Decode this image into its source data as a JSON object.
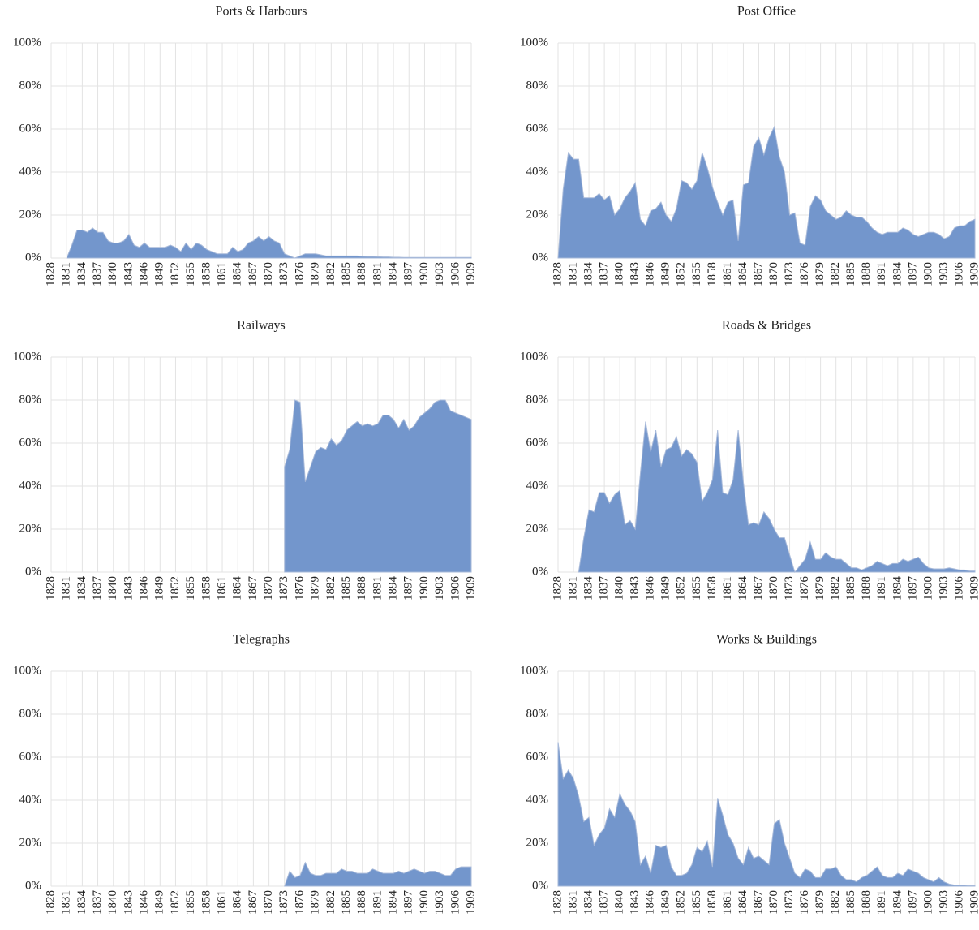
{
  "chart_data": [
    {
      "type": "area",
      "title": "Ports & Harbours",
      "color": "#7396cc",
      "grid": true,
      "x": [
        1831,
        1832,
        1833,
        1834,
        1835,
        1836,
        1837,
        1838,
        1839,
        1840,
        1841,
        1842,
        1843,
        1844,
        1845,
        1846,
        1847,
        1848,
        1849,
        1850,
        1851,
        1852,
        1853,
        1854,
        1855,
        1856,
        1857,
        1858,
        1859,
        1860,
        1861,
        1862,
        1863,
        1864,
        1865,
        1866,
        1867,
        1868,
        1869,
        1870,
        1871,
        1872,
        1873,
        1874,
        1875,
        1876,
        1877,
        1878,
        1879,
        1880,
        1881,
        1882,
        1883,
        1884,
        1885,
        1886,
        1887,
        1888,
        1889,
        1890,
        1891,
        1892,
        1893,
        1894,
        1895,
        1896,
        1897,
        1898,
        1899,
        1900,
        1901,
        1902,
        1903,
        1904,
        1905,
        1906,
        1907,
        1908,
        1909
      ],
      "values": [
        0,
        6,
        13,
        13,
        12,
        14,
        12,
        12,
        8,
        7,
        7,
        8,
        11,
        6,
        5,
        7,
        5,
        5,
        5,
        5,
        6,
        5,
        3,
        7,
        4,
        7,
        6,
        4,
        3,
        2,
        2,
        2,
        5,
        3,
        4,
        7,
        8,
        10,
        8,
        10,
        8,
        7,
        2,
        1,
        0,
        1,
        2,
        2,
        2,
        1.5,
        1,
        1,
        1,
        1,
        1,
        1,
        1,
        0.8,
        0.7,
        0.7,
        0.6,
        0.5,
        0.5,
        0.4,
        0.4,
        0.3,
        0.3,
        0.3,
        0.3,
        0.3,
        0.3,
        0.3,
        0.3,
        0.3,
        0.3,
        0.3,
        0.3,
        0.3,
        0.3
      ],
      "xlim": [
        1828,
        1909
      ],
      "xticks": [
        1828,
        1831,
        1834,
        1837,
        1840,
        1843,
        1846,
        1849,
        1852,
        1855,
        1858,
        1861,
        1864,
        1867,
        1870,
        1873,
        1876,
        1879,
        1882,
        1885,
        1888,
        1891,
        1894,
        1897,
        1900,
        1903,
        1906,
        1909
      ],
      "ylim": [
        0,
        100
      ],
      "yticks": [
        {
          "value": 0,
          "label": "0%"
        },
        {
          "value": 20,
          "label": "20%"
        },
        {
          "value": 40,
          "label": "40%"
        },
        {
          "value": 60,
          "label": "60%"
        },
        {
          "value": 80,
          "label": "80%"
        },
        {
          "value": 100,
          "label": "100%"
        }
      ]
    },
    {
      "type": "area",
      "title": "Post Office",
      "color": "#7396cc",
      "grid": true,
      "x": [
        1828,
        1829,
        1830,
        1831,
        1832,
        1833,
        1834,
        1835,
        1836,
        1837,
        1838,
        1839,
        1840,
        1841,
        1842,
        1843,
        1844,
        1845,
        1846,
        1847,
        1848,
        1849,
        1850,
        1851,
        1852,
        1853,
        1854,
        1855,
        1856,
        1857,
        1858,
        1859,
        1860,
        1861,
        1862,
        1863,
        1864,
        1865,
        1866,
        1867,
        1868,
        1869,
        1870,
        1871,
        1872,
        1873,
        1874,
        1875,
        1876,
        1877,
        1878,
        1879,
        1880,
        1881,
        1882,
        1883,
        1884,
        1885,
        1886,
        1887,
        1888,
        1889,
        1890,
        1891,
        1892,
        1893,
        1894,
        1895,
        1896,
        1897,
        1898,
        1899,
        1900,
        1901,
        1902,
        1903,
        1904,
        1905,
        1906,
        1907,
        1908,
        1909
      ],
      "values": [
        0,
        32,
        49,
        46,
        46,
        28,
        28,
        28,
        30,
        27,
        29,
        20,
        23,
        28,
        31,
        35,
        18,
        15,
        22,
        23,
        26,
        20,
        17,
        23,
        36,
        35,
        32,
        36,
        49,
        42,
        33,
        26,
        20,
        26,
        27,
        8,
        34,
        35,
        52,
        56,
        48,
        56,
        61,
        47,
        40,
        20,
        21,
        7,
        6,
        24,
        29,
        27,
        22,
        20,
        18,
        19,
        22,
        20,
        19,
        19,
        17,
        14,
        12,
        11,
        12,
        12,
        12,
        14,
        13,
        11,
        10,
        11,
        12,
        12,
        11,
        9,
        10,
        14,
        15,
        15,
        17,
        18
      ],
      "xlim": [
        1828,
        1909
      ],
      "xticks": [
        1828,
        1831,
        1834,
        1837,
        1840,
        1843,
        1846,
        1849,
        1852,
        1855,
        1858,
        1861,
        1864,
        1867,
        1870,
        1873,
        1876,
        1879,
        1882,
        1885,
        1888,
        1891,
        1894,
        1897,
        1900,
        1903,
        1906,
        1909
      ],
      "ylim": [
        0,
        100
      ],
      "yticks": [
        {
          "value": 0,
          "label": "0%"
        },
        {
          "value": 20,
          "label": "20%"
        },
        {
          "value": 40,
          "label": "40%"
        },
        {
          "value": 60,
          "label": "60%"
        },
        {
          "value": 80,
          "label": "80%"
        },
        {
          "value": 100,
          "label": "100%"
        }
      ]
    },
    {
      "type": "area",
      "title": "Railways",
      "color": "#7396cc",
      "grid": true,
      "x": [
        1873,
        1874,
        1875,
        1876,
        1877,
        1878,
        1879,
        1880,
        1881,
        1882,
        1883,
        1884,
        1885,
        1886,
        1887,
        1888,
        1889,
        1890,
        1891,
        1892,
        1893,
        1894,
        1895,
        1896,
        1897,
        1898,
        1899,
        1900,
        1901,
        1902,
        1903,
        1904,
        1905,
        1906,
        1907,
        1908,
        1909
      ],
      "values": [
        49,
        57,
        80,
        79,
        42,
        49,
        56,
        58,
        57,
        62,
        59,
        61,
        66,
        68,
        70,
        68,
        69,
        68,
        69,
        73,
        73,
        71,
        67,
        71,
        66,
        68,
        72,
        74,
        76,
        79,
        80,
        80,
        75,
        74,
        73,
        72,
        71
      ],
      "xlim": [
        1828,
        1909
      ],
      "xticks": [
        1828,
        1831,
        1834,
        1837,
        1840,
        1843,
        1846,
        1849,
        1852,
        1855,
        1858,
        1861,
        1864,
        1867,
        1870,
        1873,
        1876,
        1879,
        1882,
        1885,
        1888,
        1891,
        1894,
        1897,
        1900,
        1903,
        1906,
        1909
      ],
      "ylim": [
        0,
        100
      ],
      "yticks": [
        {
          "value": 0,
          "label": "0%"
        },
        {
          "value": 20,
          "label": "20%"
        },
        {
          "value": 40,
          "label": "40%"
        },
        {
          "value": 60,
          "label": "60%"
        },
        {
          "value": 80,
          "label": "80%"
        },
        {
          "value": 100,
          "label": "100%"
        }
      ]
    },
    {
      "type": "area",
      "title": "Roads & Bridges",
      "color": "#7396cc",
      "grid": true,
      "x": [
        1832,
        1833,
        1834,
        1835,
        1836,
        1837,
        1838,
        1839,
        1840,
        1841,
        1842,
        1843,
        1844,
        1845,
        1846,
        1847,
        1848,
        1849,
        1850,
        1851,
        1852,
        1853,
        1854,
        1855,
        1856,
        1857,
        1858,
        1859,
        1860,
        1861,
        1862,
        1863,
        1864,
        1865,
        1866,
        1867,
        1868,
        1869,
        1870,
        1871,
        1872,
        1873,
        1874,
        1875,
        1876,
        1877,
        1878,
        1879,
        1880,
        1881,
        1882,
        1883,
        1884,
        1885,
        1886,
        1887,
        1888,
        1889,
        1890,
        1891,
        1892,
        1893,
        1894,
        1895,
        1896,
        1897,
        1898,
        1899,
        1900,
        1901,
        1902,
        1903,
        1904,
        1905,
        1906,
        1907,
        1908,
        1909
      ],
      "values": [
        0,
        16,
        29,
        28,
        37,
        37,
        32,
        36,
        38,
        22,
        24,
        20,
        46,
        70,
        56,
        66,
        49,
        57,
        58,
        63,
        54,
        57,
        55,
        51,
        33,
        37,
        43,
        66,
        37,
        36,
        43,
        66,
        42,
        22,
        23,
        22,
        28,
        25,
        20,
        16,
        16,
        8,
        0,
        3,
        6,
        14,
        6,
        6,
        9,
        7,
        6,
        6,
        4,
        2,
        2,
        1,
        2,
        3,
        5,
        4,
        3,
        4,
        4,
        6,
        5,
        6,
        7,
        4,
        2,
        1.5,
        1.5,
        1.5,
        2,
        1.5,
        1,
        1,
        0.5,
        0.5
      ],
      "xlim": [
        1828,
        1909
      ],
      "xticks": [
        1828,
        1831,
        1834,
        1837,
        1840,
        1843,
        1846,
        1849,
        1852,
        1855,
        1858,
        1861,
        1864,
        1867,
        1870,
        1873,
        1876,
        1879,
        1882,
        1885,
        1888,
        1891,
        1894,
        1897,
        1900,
        1903,
        1906,
        1909
      ],
      "ylim": [
        0,
        100
      ],
      "yticks": [
        {
          "value": 0,
          "label": "0%"
        },
        {
          "value": 20,
          "label": "20%"
        },
        {
          "value": 40,
          "label": "40%"
        },
        {
          "value": 60,
          "label": "60%"
        },
        {
          "value": 80,
          "label": "80%"
        },
        {
          "value": 100,
          "label": "100%"
        }
      ]
    },
    {
      "type": "area",
      "title": "Telegraphs",
      "color": "#7396cc",
      "grid": true,
      "x": [
        1873,
        1874,
        1875,
        1876,
        1877,
        1878,
        1879,
        1880,
        1881,
        1882,
        1883,
        1884,
        1885,
        1886,
        1887,
        1888,
        1889,
        1890,
        1891,
        1892,
        1893,
        1894,
        1895,
        1896,
        1897,
        1898,
        1899,
        1900,
        1901,
        1902,
        1903,
        1904,
        1905,
        1906,
        1907,
        1908,
        1909
      ],
      "values": [
        0,
        7,
        4,
        5,
        11,
        6,
        5,
        5,
        6,
        6,
        6,
        8,
        7,
        7,
        6,
        6,
        6,
        8,
        7,
        6,
        6,
        6,
        7,
        6,
        7,
        8,
        7,
        6,
        7,
        7,
        6,
        5,
        5,
        8,
        9,
        9,
        9
      ],
      "xlim": [
        1828,
        1909
      ],
      "xticks": [
        1828,
        1831,
        1834,
        1837,
        1840,
        1843,
        1846,
        1849,
        1852,
        1855,
        1858,
        1861,
        1864,
        1867,
        1870,
        1873,
        1876,
        1879,
        1882,
        1885,
        1888,
        1891,
        1894,
        1897,
        1900,
        1903,
        1906,
        1909
      ],
      "ylim": [
        0,
        100
      ],
      "yticks": [
        {
          "value": 0,
          "label": "0%"
        },
        {
          "value": 20,
          "label": "20%"
        },
        {
          "value": 40,
          "label": "40%"
        },
        {
          "value": 60,
          "label": "60%"
        },
        {
          "value": 80,
          "label": "80%"
        },
        {
          "value": 100,
          "label": "100%"
        }
      ]
    },
    {
      "type": "area",
      "title": "Works & Buildings",
      "color": "#7396cc",
      "grid": true,
      "x": [
        1828,
        1829,
        1830,
        1831,
        1832,
        1833,
        1834,
        1835,
        1836,
        1837,
        1838,
        1839,
        1840,
        1841,
        1842,
        1843,
        1844,
        1845,
        1846,
        1847,
        1848,
        1849,
        1850,
        1851,
        1852,
        1853,
        1854,
        1855,
        1856,
        1857,
        1858,
        1859,
        1860,
        1861,
        1862,
        1863,
        1864,
        1865,
        1866,
        1867,
        1868,
        1869,
        1870,
        1871,
        1872,
        1873,
        1874,
        1875,
        1876,
        1877,
        1878,
        1879,
        1880,
        1881,
        1882,
        1883,
        1884,
        1885,
        1886,
        1887,
        1888,
        1889,
        1890,
        1891,
        1892,
        1893,
        1894,
        1895,
        1896,
        1897,
        1898,
        1899,
        1900,
        1901,
        1902,
        1903,
        1904,
        1905,
        1906,
        1907,
        1908,
        1909
      ],
      "values": [
        67,
        50,
        54,
        50,
        42,
        30,
        32,
        19,
        24,
        27,
        36,
        32,
        43,
        38,
        35,
        30,
        10,
        14,
        6,
        19,
        18,
        19,
        9,
        5,
        5,
        6,
        10,
        18,
        16,
        21,
        9,
        41,
        33,
        24,
        20,
        13,
        10,
        18,
        13,
        14,
        12,
        10,
        29,
        31,
        20,
        13,
        6,
        4,
        8,
        7,
        4,
        4,
        8,
        8,
        9,
        5,
        3,
        3,
        2,
        4,
        5,
        7,
        9,
        5,
        4,
        4,
        6,
        5,
        8,
        7,
        6,
        4,
        3,
        2,
        4,
        2,
        1,
        0.5,
        0.5,
        0.5,
        0.3,
        0.3
      ],
      "xlim": [
        1828,
        1909
      ],
      "xticks": [
        1828,
        1831,
        1834,
        1837,
        1840,
        1843,
        1846,
        1849,
        1852,
        1855,
        1858,
        1861,
        1864,
        1867,
        1870,
        1873,
        1876,
        1879,
        1882,
        1885,
        1888,
        1891,
        1894,
        1897,
        1900,
        1903,
        1906,
        1909
      ],
      "ylim": [
        0,
        100
      ],
      "yticks": [
        {
          "value": 0,
          "label": "0%"
        },
        {
          "value": 20,
          "label": "20%"
        },
        {
          "value": 40,
          "label": "40%"
        },
        {
          "value": 60,
          "label": "60%"
        },
        {
          "value": 80,
          "label": "80%"
        },
        {
          "value": 100,
          "label": "100%"
        }
      ]
    }
  ]
}
